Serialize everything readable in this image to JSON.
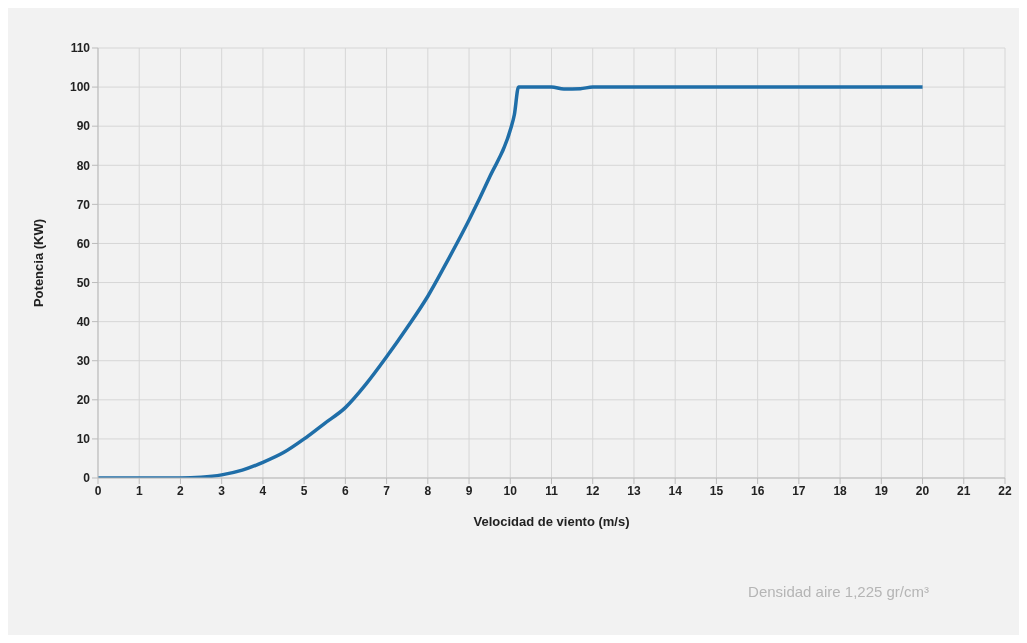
{
  "chart_data": {
    "type": "line",
    "xlabel": "Velocidad de viento (m/s)",
    "ylabel": "Potencia (KW)",
    "annotations": [
      "Densidad aire 1,225 gr/cm³"
    ],
    "x": [
      0,
      1,
      2,
      2.5,
      3,
      3.5,
      4,
      4.5,
      5,
      5.5,
      6,
      6.5,
      7,
      7.5,
      8,
      8.5,
      9,
      9.5,
      10,
      10.1,
      10.2,
      11,
      11.3,
      11.7,
      12,
      13,
      14,
      15,
      16,
      17,
      18,
      19,
      20
    ],
    "series": [
      {
        "color": "#1f6ea8",
        "values": [
          0,
          0,
          0,
          0.2,
          0.8,
          2,
          4,
          6.5,
          10,
          14,
          18,
          24,
          31,
          38.5,
          46.5,
          56,
          66,
          77,
          89,
          93,
          100,
          100,
          99.5,
          99.6,
          100,
          100,
          100,
          100,
          100,
          100,
          100,
          100,
          100
        ]
      }
    ],
    "xlim": [
      0,
      22
    ],
    "xticks": [
      0,
      1,
      2,
      3,
      4,
      5,
      6,
      7,
      8,
      9,
      10,
      11,
      12,
      13,
      14,
      15,
      16,
      17,
      18,
      19,
      20,
      21,
      22
    ],
    "ylim": [
      0,
      110
    ],
    "yticks": [
      0,
      10,
      20,
      30,
      40,
      50,
      60,
      70,
      80,
      90,
      100,
      110
    ],
    "grid": true,
    "legend": false,
    "marker": "none",
    "line_style": "solid"
  }
}
